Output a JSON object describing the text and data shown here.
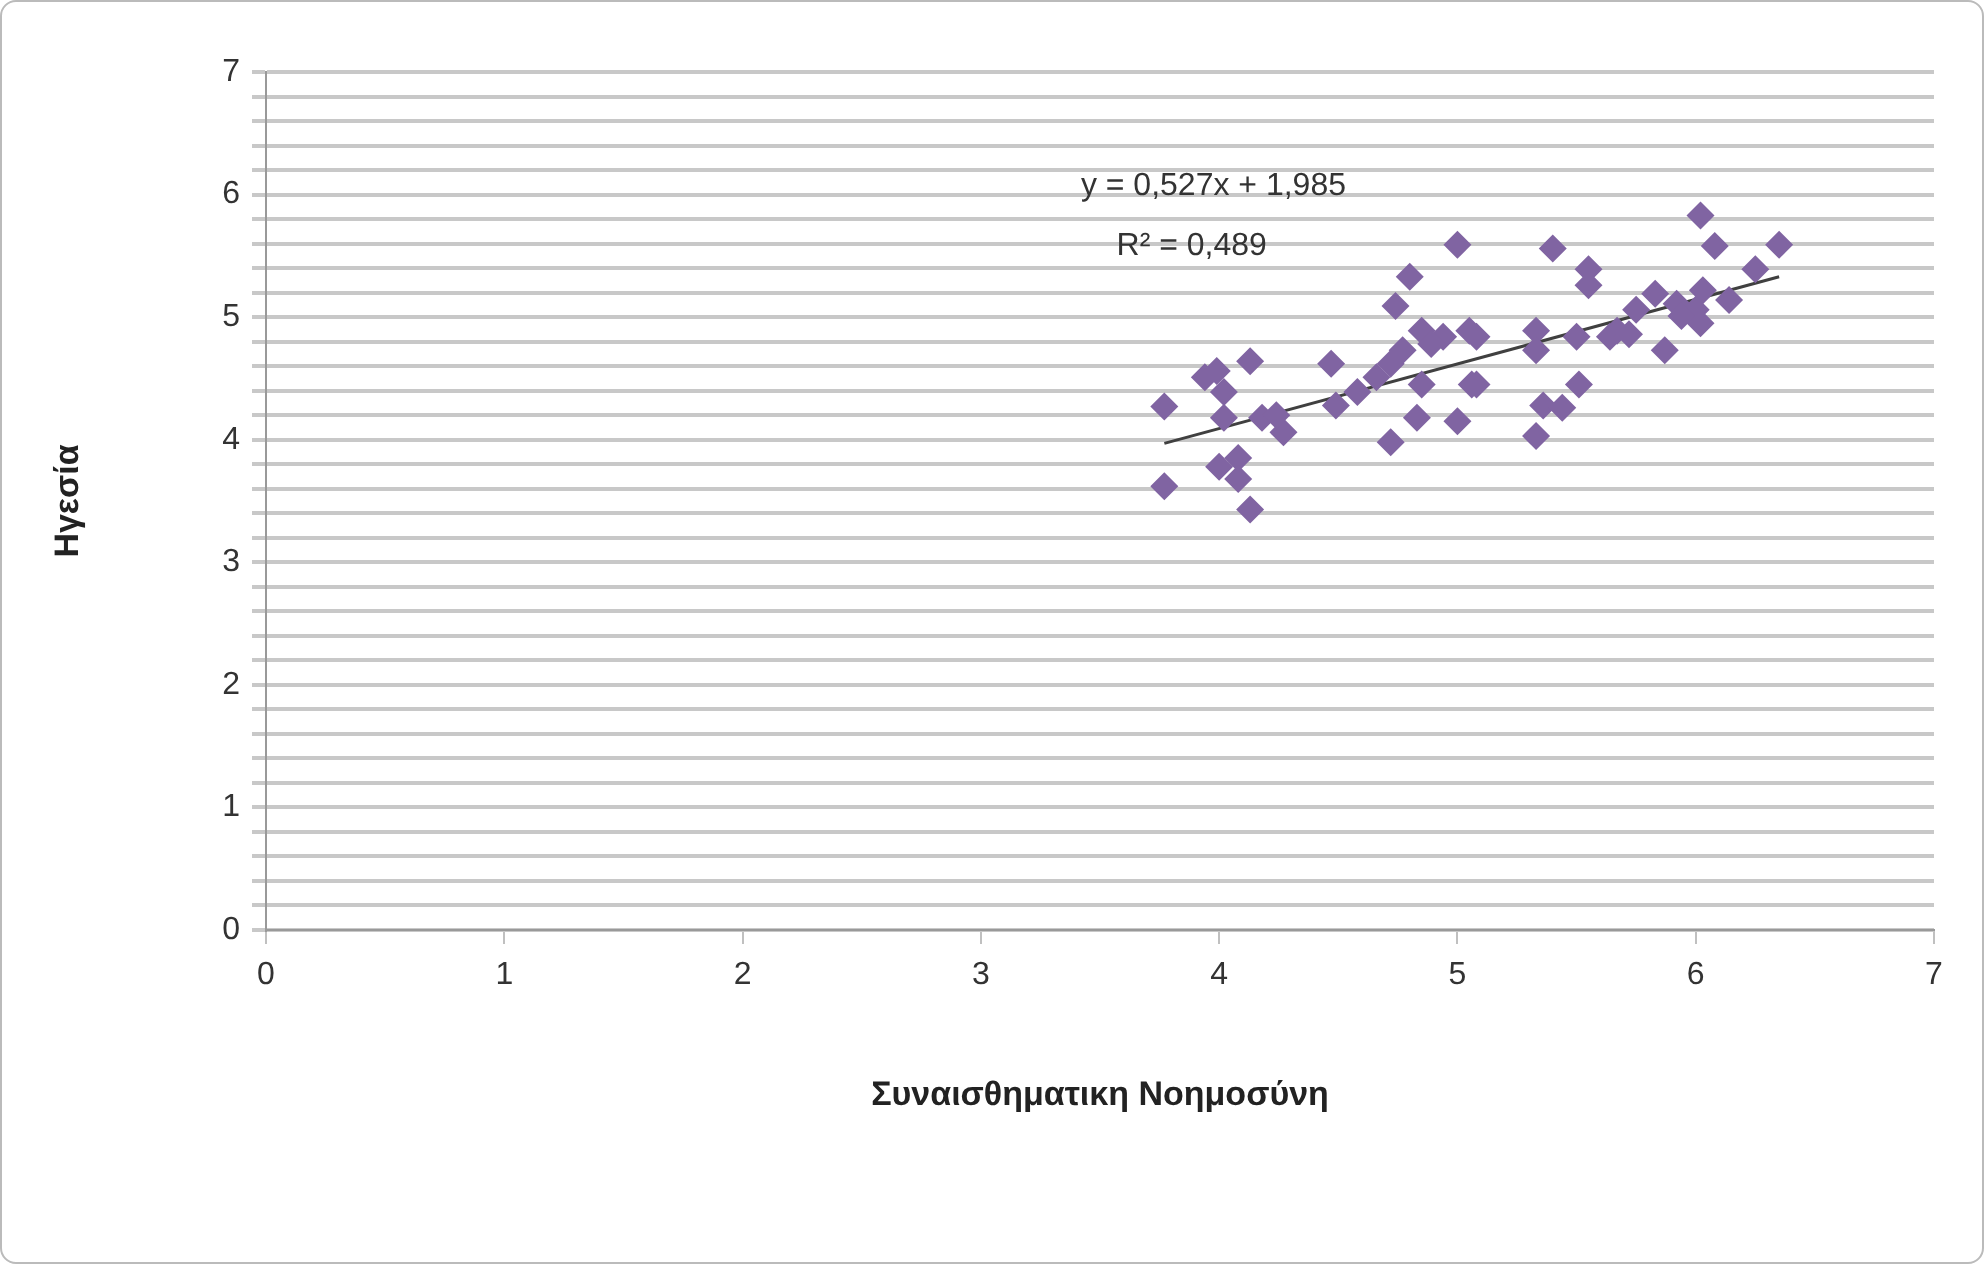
{
  "chart_data": {
    "type": "scatter",
    "xlabel": "Συναισθηματικη Νοημοσύνη",
    "ylabel": "Ηγεσία",
    "annotations": [
      "y = 0,527x + 1,985",
      "R² = 0,489"
    ],
    "xlim": [
      0,
      7
    ],
    "xticks": [
      0,
      1,
      2,
      3,
      4,
      5,
      6,
      7
    ],
    "ylim": [
      0,
      7
    ],
    "yticks": [
      0,
      {
        "value": 0.2,
        "label": null
      },
      {
        "value": 0.4,
        "label": null
      },
      {
        "value": 0.6,
        "label": null
      },
      {
        "value": 0.8,
        "label": null
      },
      1,
      {
        "value": 1.2,
        "label": null
      },
      {
        "value": 1.4,
        "label": null
      },
      {
        "value": 1.6,
        "label": null
      },
      {
        "value": 1.8,
        "label": null
      },
      2,
      {
        "value": 2.2,
        "label": null
      },
      {
        "value": 2.4,
        "label": null
      },
      {
        "value": 2.6,
        "label": null
      },
      {
        "value": 2.8,
        "label": null
      },
      3,
      {
        "value": 3.2,
        "label": null
      },
      {
        "value": 3.4,
        "label": null
      },
      {
        "value": 3.6,
        "label": null
      },
      {
        "value": 3.8,
        "label": null
      },
      4,
      {
        "value": 4.2,
        "label": null
      },
      {
        "value": 4.4,
        "label": null
      },
      {
        "value": 4.6,
        "label": null
      },
      {
        "value": 4.8,
        "label": null
      },
      5,
      {
        "value": 5.2,
        "label": null
      },
      {
        "value": 5.4,
        "label": null
      },
      {
        "value": 5.6,
        "label": null
      },
      {
        "value": 5.8,
        "label": null
      },
      6,
      {
        "value": 6.2,
        "label": null
      },
      {
        "value": 6.4,
        "label": null
      },
      {
        "value": 6.6,
        "label": null
      },
      {
        "value": 6.8,
        "label": null
      },
      7
    ],
    "grid": "y",
    "legend": false,
    "series": [
      {
        "type": "scatter",
        "color": "#8064a2",
        "marker": "diamond",
        "x": [
          3.77,
          3.77,
          3.94,
          3.99,
          4.02,
          4.13,
          4.02,
          4.08,
          4.08,
          4.0,
          4.13,
          4.18,
          4.27,
          4.24,
          4.47,
          4.49,
          4.58,
          4.66,
          4.72,
          4.72,
          4.77,
          4.74,
          4.8,
          4.85,
          4.83,
          4.85,
          5.0,
          4.94,
          5.05,
          5.06,
          5.0,
          4.89,
          5.08,
          5.08,
          5.33,
          5.33,
          5.4,
          5.55,
          5.55,
          5.5,
          5.36,
          5.44,
          5.51,
          5.33,
          5.75,
          5.83,
          5.87,
          5.64,
          5.67,
          5.72,
          6.0,
          6.02,
          5.92,
          6.03,
          6.02,
          6.08,
          6.14,
          6.25,
          6.35,
          5.94
        ],
        "values": [
          4.27,
          3.62,
          4.51,
          4.56,
          4.39,
          4.64,
          4.18,
          3.85,
          3.68,
          3.78,
          3.43,
          4.18,
          4.06,
          4.2,
          4.62,
          4.28,
          4.39,
          4.51,
          4.62,
          3.98,
          4.73,
          5.09,
          5.33,
          4.89,
          4.18,
          4.45,
          5.59,
          4.84,
          4.89,
          4.45,
          4.15,
          4.78,
          4.84,
          4.45,
          4.89,
          4.73,
          5.56,
          5.39,
          5.26,
          4.84,
          4.28,
          4.26,
          4.45,
          4.03,
          5.06,
          5.19,
          4.73,
          4.84,
          4.89,
          4.86,
          5.06,
          4.95,
          5.11,
          5.22,
          5.83,
          5.58,
          5.14,
          5.39,
          5.59,
          5.01
        ]
      },
      {
        "type": "line",
        "color": "#404040",
        "marker": "none",
        "x": [
          3.77,
          6.35
        ],
        "values": [
          3.97,
          5.33
        ]
      }
    ]
  }
}
